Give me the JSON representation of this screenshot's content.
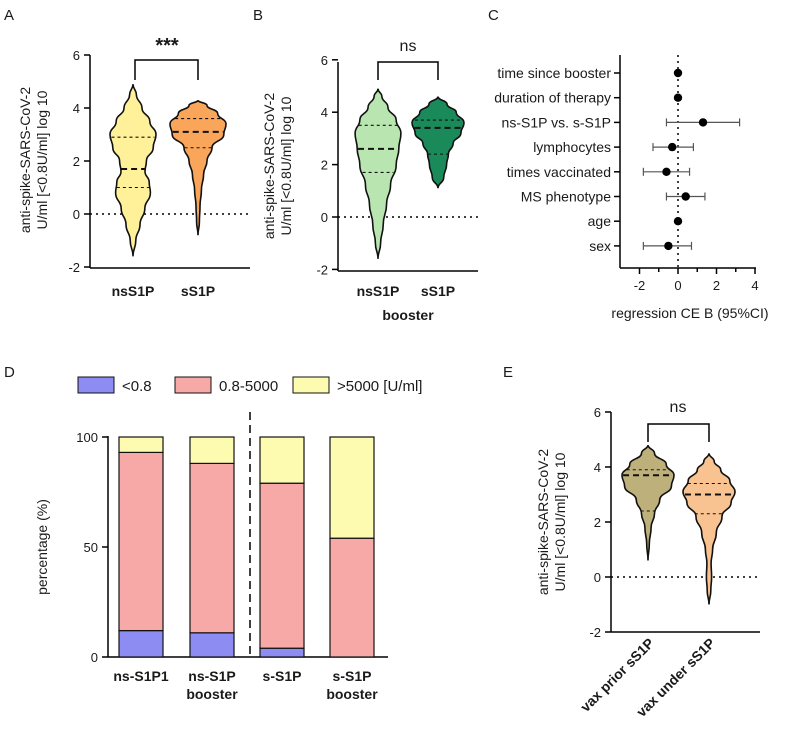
{
  "colors": {
    "nsS1P": "#fff09a",
    "sS1P": "#f9a55a",
    "nsS1P_booster": "#b9e6b0",
    "sS1P_booster": "#1b8a5a",
    "vax_prior": "#bdb07a",
    "vax_under": "#f8c391",
    "lt08": "#8c8cf2",
    "mid": "#f7a9a8",
    "gt5000": "#fdfbb0"
  },
  "chart_data": [
    {
      "panel": "A",
      "type": "violin",
      "ylabel_line1": "anti-spike-SARS-CoV-2",
      "ylabel_line2": "U/ml [<0.8U/ml] log 10",
      "ylim": [
        -2,
        6
      ],
      "yticks": [
        "-2",
        "0",
        "2",
        "4",
        "6"
      ],
      "xlabel": "",
      "significance": "***",
      "groups": [
        {
          "name": "nsS1P",
          "min": -1.6,
          "max": 4.9,
          "median": 1.7,
          "q1": 1.0,
          "q3": 2.9,
          "profile": [
            [
              -1.6,
              0.0
            ],
            [
              -1.0,
              0.1
            ],
            [
              -0.4,
              0.25
            ],
            [
              0.2,
              0.42
            ],
            [
              0.8,
              0.62
            ],
            [
              1.2,
              0.58
            ],
            [
              1.6,
              0.43
            ],
            [
              2.0,
              0.48
            ],
            [
              2.5,
              0.72
            ],
            [
              3.0,
              0.82
            ],
            [
              3.5,
              0.6
            ],
            [
              4.0,
              0.32
            ],
            [
              4.5,
              0.12
            ],
            [
              4.9,
              0.0
            ]
          ]
        },
        {
          "name": "sS1P",
          "min": -0.8,
          "max": 4.3,
          "median": 3.1,
          "q1": 2.5,
          "q3": 3.6,
          "profile": [
            [
              -0.8,
              0.0
            ],
            [
              -0.3,
              0.05
            ],
            [
              0.3,
              0.07
            ],
            [
              0.9,
              0.12
            ],
            [
              1.5,
              0.2
            ],
            [
              2.0,
              0.32
            ],
            [
              2.5,
              0.5
            ],
            [
              3.0,
              0.92
            ],
            [
              3.4,
              1.0
            ],
            [
              3.8,
              0.7
            ],
            [
              4.1,
              0.32
            ],
            [
              4.3,
              0.0
            ]
          ]
        }
      ]
    },
    {
      "panel": "B",
      "type": "violin",
      "ylabel_line1": "anti-spike-SARS-CoV-2",
      "ylabel_line2": "U/ml [<0.8U/ml] log 10",
      "ylim": [
        -2,
        6
      ],
      "yticks": [
        "-2",
        "0",
        "2",
        "4",
        "6"
      ],
      "xlabel": "booster",
      "significance": "ns",
      "groups": [
        {
          "name": "nsS1P",
          "min": -1.6,
          "max": 4.9,
          "median": 2.6,
          "q1": 1.7,
          "q3": 3.5,
          "profile": [
            [
              -1.6,
              0.0
            ],
            [
              -1.0,
              0.1
            ],
            [
              -0.3,
              0.2
            ],
            [
              0.5,
              0.33
            ],
            [
              1.2,
              0.48
            ],
            [
              2.0,
              0.7
            ],
            [
              2.6,
              0.8
            ],
            [
              3.2,
              0.88
            ],
            [
              3.7,
              0.7
            ],
            [
              4.2,
              0.38
            ],
            [
              4.6,
              0.15
            ],
            [
              4.9,
              0.0
            ]
          ]
        },
        {
          "name": "sS1P",
          "min": 1.1,
          "max": 4.6,
          "median": 3.4,
          "q1": 2.4,
          "q3": 3.7,
          "profile": [
            [
              1.1,
              0.0
            ],
            [
              1.5,
              0.22
            ],
            [
              2.0,
              0.33
            ],
            [
              2.4,
              0.4
            ],
            [
              2.8,
              0.58
            ],
            [
              3.2,
              0.88
            ],
            [
              3.6,
              1.0
            ],
            [
              4.0,
              0.7
            ],
            [
              4.3,
              0.35
            ],
            [
              4.6,
              0.0
            ]
          ]
        }
      ]
    },
    {
      "panel": "C",
      "type": "forest",
      "xlabel": "regression CE B (95%CI)",
      "xlim": [
        -3,
        4
      ],
      "xticks": [
        "-2",
        "0",
        "2",
        "4"
      ],
      "rows": [
        {
          "label": "time since booster",
          "est": 0.0,
          "lo": -0.05,
          "hi": 0.05
        },
        {
          "label": "duration of therapy",
          "est": 0.0,
          "lo": -0.05,
          "hi": 0.05
        },
        {
          "label": "ns-S1P vs. s-S1P",
          "est": 1.3,
          "lo": -0.6,
          "hi": 3.2
        },
        {
          "label": "lymphocytes",
          "est": -0.3,
          "lo": -1.3,
          "hi": 0.8
        },
        {
          "label": "times vaccinated",
          "est": -0.6,
          "lo": -1.8,
          "hi": 0.6
        },
        {
          "label": "MS phenotype",
          "est": 0.4,
          "lo": -0.6,
          "hi": 1.4
        },
        {
          "label": "age",
          "est": 0.0,
          "lo": -0.05,
          "hi": 0.05
        },
        {
          "label": "sex",
          "est": -0.5,
          "lo": -1.8,
          "hi": 0.7
        }
      ]
    },
    {
      "panel": "D",
      "type": "stacked_bar",
      "ylabel": "percentage  (%)",
      "ylim": [
        0,
        100
      ],
      "yticks": [
        "0",
        "50",
        "100"
      ],
      "legend": [
        "<0.8",
        "0.8-5000",
        ">5000 [U/ml]"
      ],
      "categories": [
        {
          "line1": "ns-S1P1",
          "line2": ""
        },
        {
          "line1": "ns-S1P",
          "line2": "booster"
        },
        {
          "line1": "s-S1P",
          "line2": ""
        },
        {
          "line1": "s-S1P",
          "line2": "booster"
        }
      ],
      "series": [
        {
          "name": "<0.8",
          "values": [
            12,
            11,
            4,
            0
          ]
        },
        {
          "name": "0.8-5000",
          "values": [
            81,
            77,
            75,
            54
          ]
        },
        {
          "name": ">5000 [U/ml]",
          "values": [
            7,
            12,
            21,
            46
          ]
        }
      ]
    },
    {
      "panel": "E",
      "type": "violin",
      "ylabel_line1": "anti-spike-SARS-CoV-2",
      "ylabel_line2": "U/ml [<0.8U/ml] log 10",
      "ylim": [
        -2,
        6
      ],
      "yticks": [
        "-2",
        "0",
        "2",
        "4",
        "6"
      ],
      "significance": "ns",
      "groups": [
        {
          "name": "vax prior sS1P",
          "min": 0.6,
          "max": 4.8,
          "median": 3.7,
          "q1": 2.4,
          "q3": 3.9,
          "profile": [
            [
              0.6,
              0.0
            ],
            [
              1.2,
              0.05
            ],
            [
              1.8,
              0.12
            ],
            [
              2.3,
              0.25
            ],
            [
              2.8,
              0.45
            ],
            [
              3.3,
              0.9
            ],
            [
              3.7,
              1.0
            ],
            [
              4.1,
              0.7
            ],
            [
              4.5,
              0.25
            ],
            [
              4.8,
              0.0
            ]
          ]
        },
        {
          "name": "vax under sS1P",
          "min": -1.0,
          "max": 4.5,
          "median": 3.0,
          "q1": 2.3,
          "q3": 3.4,
          "profile": [
            [
              -1.0,
              0.0
            ],
            [
              -0.5,
              0.07
            ],
            [
              0.0,
              0.1
            ],
            [
              0.5,
              0.08
            ],
            [
              1.0,
              0.14
            ],
            [
              1.6,
              0.28
            ],
            [
              2.2,
              0.5
            ],
            [
              2.7,
              0.85
            ],
            [
              3.1,
              1.0
            ],
            [
              3.5,
              0.8
            ],
            [
              3.9,
              0.45
            ],
            [
              4.2,
              0.2
            ],
            [
              4.5,
              0.0
            ]
          ]
        }
      ]
    }
  ]
}
